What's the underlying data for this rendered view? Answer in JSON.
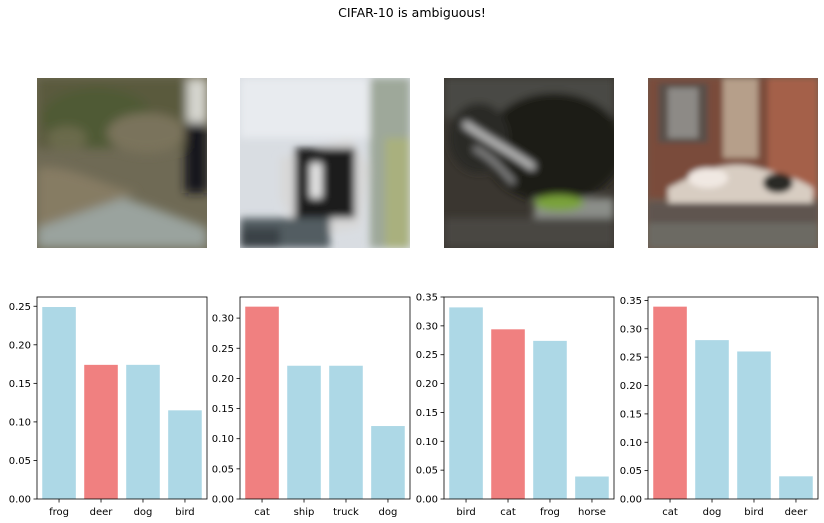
{
  "figure": {
    "suptitle": "CIFAR-10 is ambiguous!"
  },
  "images": [
    {
      "depicts": "blurry low-res photo: dirt path with grass, dark vehicle at right edge"
    },
    {
      "depicts": "blurry low-res photo: white and black object against light background"
    },
    {
      "depicts": "blurry low-res photo: dark curled animal shape with green patch"
    },
    {
      "depicts": "blurry low-res photo: cat-like animal lying in front of brick building"
    }
  ],
  "colors": {
    "bar_default": "#add8e6",
    "bar_highlight": "#f08080",
    "axis": "#000000"
  },
  "chart_data": [
    {
      "type": "bar",
      "categories": [
        "frog",
        "deer",
        "dog",
        "bird"
      ],
      "values": [
        0.249,
        0.174,
        0.174,
        0.115
      ],
      "highlight": "deer",
      "ylim": [
        0,
        0.262
      ],
      "yticks": [
        "0.00",
        "0.05",
        "0.10",
        "0.15",
        "0.20",
        "0.25"
      ],
      "grid": false
    },
    {
      "type": "bar",
      "categories": [
        "cat",
        "ship",
        "truck",
        "dog"
      ],
      "values": [
        0.319,
        0.221,
        0.221,
        0.121
      ],
      "highlight": "cat",
      "ylim": [
        0,
        0.335
      ],
      "yticks": [
        "0.00",
        "0.05",
        "0.10",
        "0.15",
        "0.20",
        "0.25",
        "0.30"
      ],
      "grid": false
    },
    {
      "type": "bar",
      "categories": [
        "bird",
        "cat",
        "frog",
        "horse"
      ],
      "values": [
        0.332,
        0.294,
        0.274,
        0.039
      ],
      "highlight": "cat",
      "ylim": [
        0,
        0.35
      ],
      "yticks": [
        "0.00",
        "0.05",
        "0.10",
        "0.15",
        "0.20",
        "0.25",
        "0.30",
        "0.35"
      ],
      "grid": false
    },
    {
      "type": "bar",
      "categories": [
        "cat",
        "dog",
        "bird",
        "deer"
      ],
      "values": [
        0.339,
        0.28,
        0.26,
        0.04
      ],
      "highlight": "cat",
      "ylim": [
        0,
        0.356
      ],
      "yticks": [
        "0.00",
        "0.05",
        "0.10",
        "0.15",
        "0.20",
        "0.25",
        "0.30",
        "0.35"
      ],
      "grid": false
    }
  ]
}
